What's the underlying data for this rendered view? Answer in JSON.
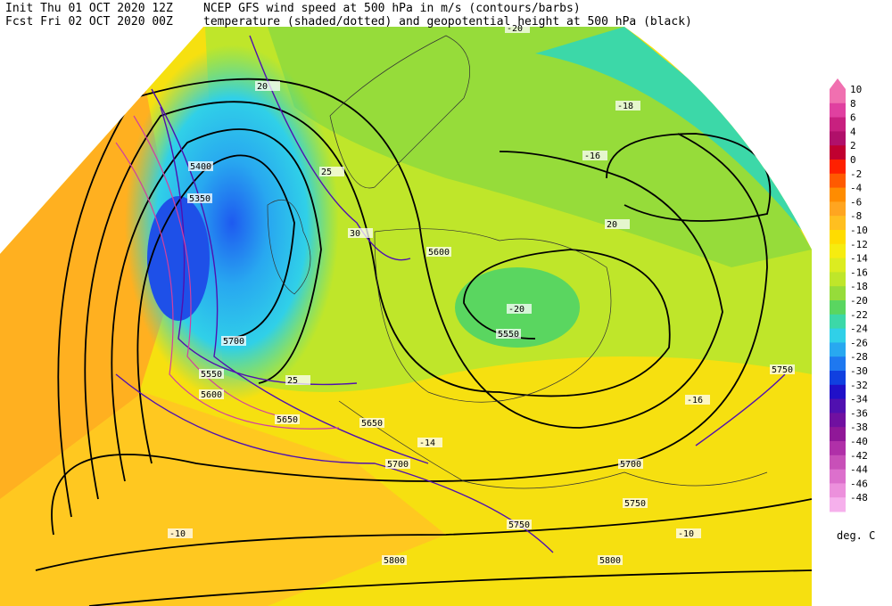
{
  "header": {
    "init": "Init  Thu 01 OCT 2020 12Z",
    "fcst": "Fcst Fri 02 OCT 2020 00Z",
    "title1": "NCEP GFS wind speed at 500 hPa in m/s (contours/barbs)",
    "title2": "temperature (shaded/dotted) and geopotential height at 500 hPa (black)"
  },
  "colorbar": {
    "unit": "deg. C",
    "levels": [
      10,
      8,
      6,
      4,
      2,
      0,
      -2,
      -4,
      -6,
      -8,
      -10,
      -12,
      -14,
      -16,
      -18,
      -20,
      -22,
      -24,
      -26,
      -28,
      -30,
      -32,
      -34,
      -36,
      -38,
      -40,
      -42,
      -44,
      -46,
      -48
    ],
    "colors": [
      "#f070b0",
      "#e040a0",
      "#c8207f",
      "#b0106a",
      "#c00030",
      "#ff2000",
      "#ff5a00",
      "#ff8c00",
      "#ffa520",
      "#ffbf20",
      "#ffdc00",
      "#f6ec10",
      "#dcec20",
      "#bfe62a",
      "#96dc3a",
      "#5ad660",
      "#3cd8a8",
      "#30d0e8",
      "#28a8f0",
      "#1e78f0",
      "#1040e0",
      "#2010c8",
      "#5010b0",
      "#7010a0",
      "#901898",
      "#b030a8",
      "#c850b8",
      "#dc70cc",
      "#ec90dc",
      "#f6b0ec"
    ]
  },
  "map_labels": [
    "5400",
    "5350",
    "5700",
    "5600",
    "5550",
    "5650",
    "5700",
    "5750",
    "5800",
    "5750",
    "5750",
    "5650",
    "5600",
    "5550",
    "5700",
    "5800",
    "20",
    "25",
    "30",
    "20",
    "25",
    "-16",
    "-20",
    "-18",
    "-14",
    "-10",
    "-10",
    "-16",
    "-20"
  ]
}
